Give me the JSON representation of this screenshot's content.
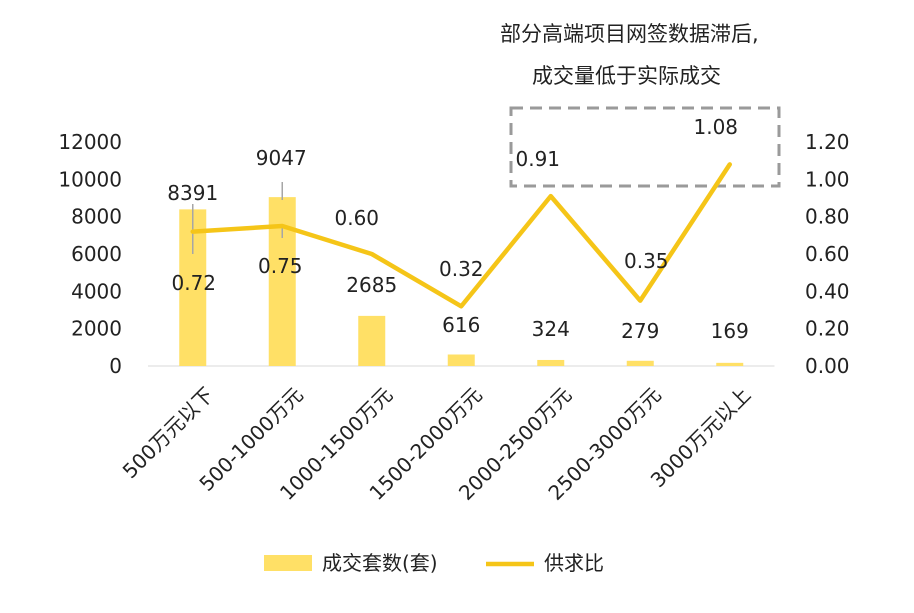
{
  "annotation": {
    "line1": "部分高端项目网签数据滞后,",
    "line2": "成交量低于实际成交"
  },
  "chart_data": {
    "type": "bar",
    "categories": [
      "500万元以下",
      "500-1000万元",
      "1000-1500万元",
      "1500-2000万元",
      "2000-2500万元",
      "2500-3000万元",
      "3000万元以上"
    ],
    "series": [
      {
        "name": "成交套数(套)",
        "type": "bar",
        "axis": "left",
        "color": "#FFE066",
        "values": [
          8391,
          9047,
          2685,
          616,
          324,
          279,
          169
        ]
      },
      {
        "name": "供求比",
        "type": "line",
        "axis": "right",
        "color": "#F5C518",
        "values": [
          0.72,
          0.75,
          0.6,
          0.32,
          0.91,
          0.35,
          1.08
        ]
      }
    ],
    "left_axis": {
      "ticks": [
        "0",
        "2000",
        "4000",
        "6000",
        "8000",
        "10000",
        "12000"
      ],
      "ylim": [
        0,
        12000
      ]
    },
    "right_axis": {
      "ticks": [
        "0.00",
        "0.20",
        "0.40",
        "0.60",
        "0.80",
        "1.00",
        "1.20"
      ],
      "ylim": [
        0,
        1.2
      ]
    },
    "bar_labels": [
      "8391",
      "9047",
      "2685",
      "616",
      "324",
      "279",
      "169"
    ],
    "line_labels": [
      "0.72",
      "0.75",
      "0.60",
      "0.32",
      "0.91",
      "0.35",
      "1.08"
    ],
    "legend": {
      "position": "bottom",
      "items": [
        "成交套数(套)",
        "供求比"
      ]
    },
    "grid": false
  }
}
